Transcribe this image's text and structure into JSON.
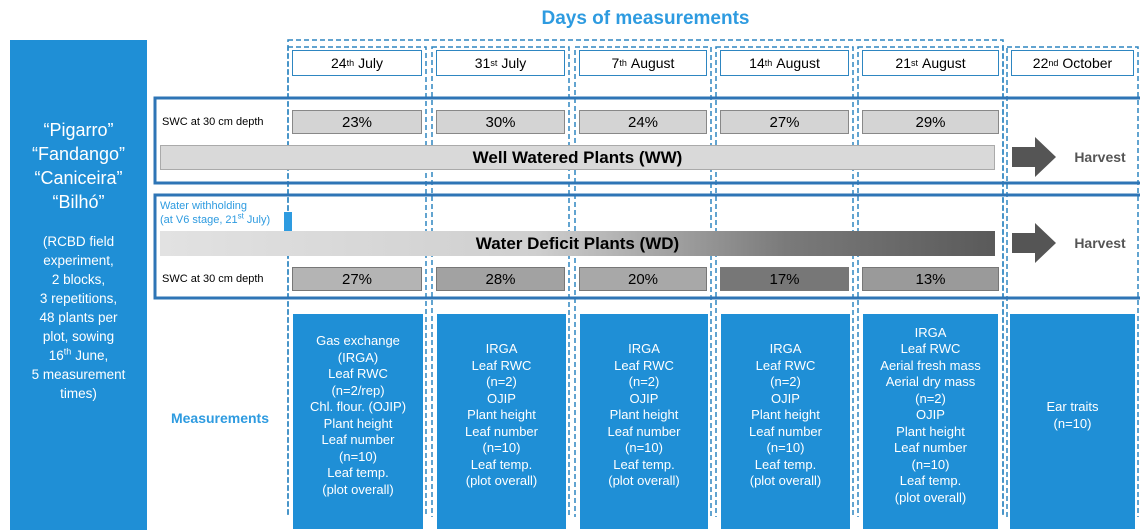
{
  "title": "Days of measurements",
  "cultivars": [
    "“Pigarro”",
    "“Fandango”",
    "“Caniceira”",
    "“Bilhó”"
  ],
  "design": {
    "lines_before": [
      "(RCBD field",
      "experiment,",
      "2 blocks,",
      "3 repetitions,",
      "48 plants per",
      "plot, sowing"
    ],
    "sowing": {
      "day": "16",
      "suffix": "th",
      "month": "June,"
    },
    "lines_after": [
      "5 measurement",
      "times)"
    ]
  },
  "days": [
    {
      "day": "24",
      "suffix": "th",
      "month": "July"
    },
    {
      "day": "31",
      "suffix": "st",
      "month": "July"
    },
    {
      "day": "7",
      "suffix": "th",
      "month": "August"
    },
    {
      "day": "14",
      "suffix": "th",
      "month": "August"
    },
    {
      "day": "21",
      "suffix": "st",
      "month": "August"
    },
    {
      "day": "22",
      "suffix": "nd",
      "month": "October"
    }
  ],
  "ww": {
    "swc_label": "SWC at 30 cm depth",
    "swc": [
      "23%",
      "30%",
      "24%",
      "27%",
      "29%"
    ],
    "label": "Well Watered Plants (WW)",
    "end": "Harvest"
  },
  "wd": {
    "note_line1": "Water withholding",
    "note_line2": {
      "before": "(at V6 stage, 21",
      "suffix": "st",
      "after": "July)"
    },
    "swc_label": "SWC at 30 cm depth",
    "swc": [
      "27%",
      "28%",
      "20%",
      "17%",
      "13%"
    ],
    "label": "Water Deficit Plants (WD)",
    "end": "Harvest"
  },
  "measurements": {
    "label": "Measurements",
    "boxes": [
      [
        "Gas exchange",
        "(IRGA)",
        "Leaf RWC",
        "(n=2/rep)",
        "Chl. flour. (OJIP)",
        "Plant height",
        "Leaf number",
        "(n=10)",
        "Leaf temp.",
        "(plot overall)"
      ],
      [
        "IRGA",
        "Leaf RWC",
        "(n=2)",
        "OJIP",
        "Plant height",
        "Leaf number",
        "(n=10)",
        "Leaf temp.",
        "(plot overall)"
      ],
      [
        "IRGA",
        "Leaf RWC",
        "(n=2)",
        "OJIP",
        "Plant height",
        "Leaf number",
        "(n=10)",
        "Leaf temp.",
        "(plot overall)"
      ],
      [
        "IRGA",
        "Leaf RWC",
        "(n=2)",
        "OJIP",
        "Plant height",
        "Leaf number",
        "(n=10)",
        "Leaf temp.",
        "(plot overall)"
      ],
      [
        "IRGA",
        "Leaf RWC",
        "Aerial fresh mass",
        "Aerial dry mass",
        "(n=2)",
        "OJIP",
        "Plant height",
        "Leaf number",
        "(n=10)",
        "Leaf temp.",
        "(plot overall)"
      ],
      [
        "Ear traits",
        "(n=10)"
      ]
    ]
  }
}
